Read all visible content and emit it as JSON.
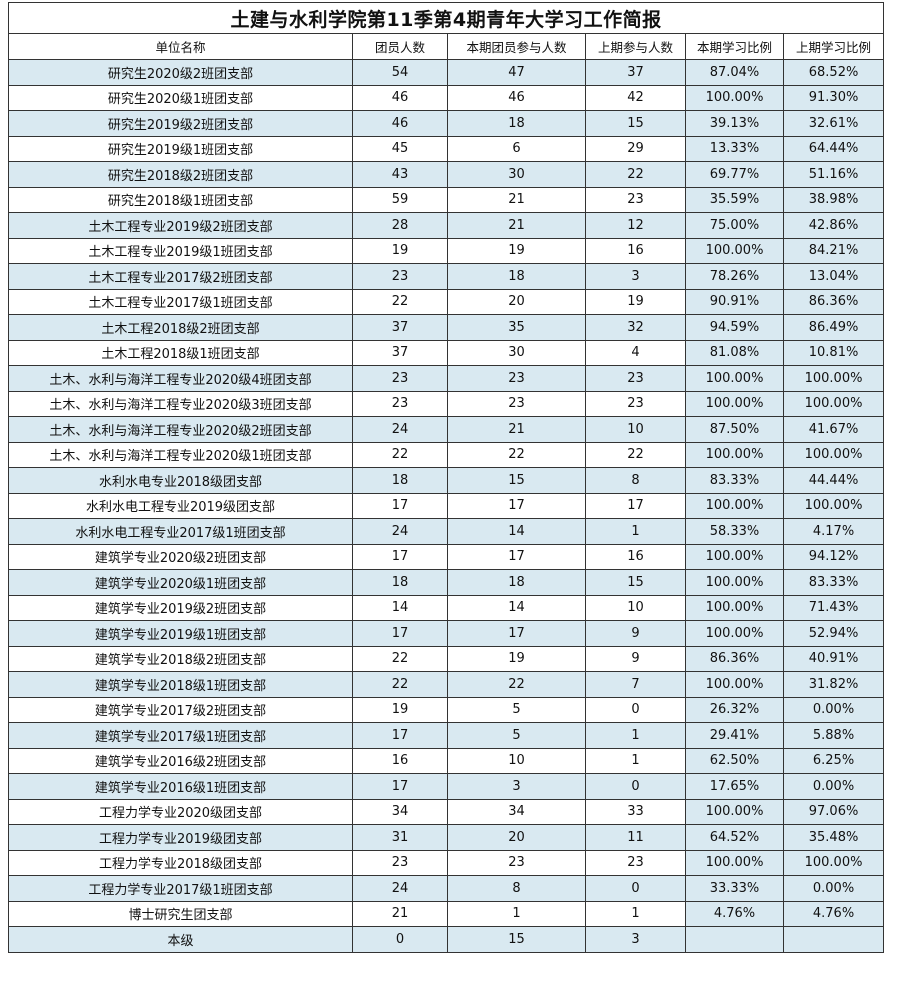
{
  "title": "土建与水利学院第11季第4期青年大学习工作简报",
  "columns": [
    "单位名称",
    "团员人数",
    "本期团员参与人数",
    "上期参与人数",
    "本期学习比例",
    "上期学习比例"
  ],
  "rows": [
    [
      "研究生2020级2班团支部",
      "54",
      "47",
      "37",
      "87.04%",
      "68.52%"
    ],
    [
      "研究生2020级1班团支部",
      "46",
      "46",
      "42",
      "100.00%",
      "91.30%"
    ],
    [
      "研究生2019级2班团支部",
      "46",
      "18",
      "15",
      "39.13%",
      "32.61%"
    ],
    [
      "研究生2019级1班团支部",
      "45",
      "6",
      "29",
      "13.33%",
      "64.44%"
    ],
    [
      "研究生2018级2班团支部",
      "43",
      "30",
      "22",
      "69.77%",
      "51.16%"
    ],
    [
      "研究生2018级1班团支部",
      "59",
      "21",
      "23",
      "35.59%",
      "38.98%"
    ],
    [
      "土木工程专业2019级2班团支部",
      "28",
      "21",
      "12",
      "75.00%",
      "42.86%"
    ],
    [
      "土木工程专业2019级1班团支部",
      "19",
      "19",
      "16",
      "100.00%",
      "84.21%"
    ],
    [
      "土木工程专业2017级2班团支部",
      "23",
      "18",
      "3",
      "78.26%",
      "13.04%"
    ],
    [
      "土木工程专业2017级1班团支部",
      "22",
      "20",
      "19",
      "90.91%",
      "86.36%"
    ],
    [
      "土木工程2018级2班团支部",
      "37",
      "35",
      "32",
      "94.59%",
      "86.49%"
    ],
    [
      "土木工程2018级1班团支部",
      "37",
      "30",
      "4",
      "81.08%",
      "10.81%"
    ],
    [
      "土木、水利与海洋工程专业2020级4班团支部",
      "23",
      "23",
      "23",
      "100.00%",
      "100.00%"
    ],
    [
      "土木、水利与海洋工程专业2020级3班团支部",
      "23",
      "23",
      "23",
      "100.00%",
      "100.00%"
    ],
    [
      "土木、水利与海洋工程专业2020级2班团支部",
      "24",
      "21",
      "10",
      "87.50%",
      "41.67%"
    ],
    [
      "土木、水利与海洋工程专业2020级1班团支部",
      "22",
      "22",
      "22",
      "100.00%",
      "100.00%"
    ],
    [
      "水利水电专业2018级团支部",
      "18",
      "15",
      "8",
      "83.33%",
      "44.44%"
    ],
    [
      "水利水电工程专业2019级团支部",
      "17",
      "17",
      "17",
      "100.00%",
      "100.00%"
    ],
    [
      "水利水电工程专业2017级1班团支部",
      "24",
      "14",
      "1",
      "58.33%",
      "4.17%"
    ],
    [
      "建筑学专业2020级2班团支部",
      "17",
      "17",
      "16",
      "100.00%",
      "94.12%"
    ],
    [
      "建筑学专业2020级1班团支部",
      "18",
      "18",
      "15",
      "100.00%",
      "83.33%"
    ],
    [
      "建筑学专业2019级2班团支部",
      "14",
      "14",
      "10",
      "100.00%",
      "71.43%"
    ],
    [
      "建筑学专业2019级1班团支部",
      "17",
      "17",
      "9",
      "100.00%",
      "52.94%"
    ],
    [
      "建筑学专业2018级2班团支部",
      "22",
      "19",
      "9",
      "86.36%",
      "40.91%"
    ],
    [
      "建筑学专业2018级1班团支部",
      "22",
      "22",
      "7",
      "100.00%",
      "31.82%"
    ],
    [
      "建筑学专业2017级2班团支部",
      "19",
      "5",
      "0",
      "26.32%",
      "0.00%"
    ],
    [
      "建筑学专业2017级1班团支部",
      "17",
      "5",
      "1",
      "29.41%",
      "5.88%"
    ],
    [
      "建筑学专业2016级2班团支部",
      "16",
      "10",
      "1",
      "62.50%",
      "6.25%"
    ],
    [
      "建筑学专业2016级1班团支部",
      "17",
      "3",
      "0",
      "17.65%",
      "0.00%"
    ],
    [
      "工程力学专业2020级团支部",
      "34",
      "34",
      "33",
      "100.00%",
      "97.06%"
    ],
    [
      "工程力学专业2019级团支部",
      "31",
      "20",
      "11",
      "64.52%",
      "35.48%"
    ],
    [
      "工程力学专业2018级团支部",
      "23",
      "23",
      "23",
      "100.00%",
      "100.00%"
    ],
    [
      "工程力学专业2017级1班团支部",
      "24",
      "8",
      "0",
      "33.33%",
      "0.00%"
    ],
    [
      "博士研究生团支部",
      "21",
      "1",
      "1",
      "4.76%",
      "4.76%"
    ],
    [
      "本级",
      "0",
      "15",
      "3",
      "",
      ""
    ]
  ],
  "colors": {
    "shade": "#d9e9f1",
    "border": "#333333"
  }
}
